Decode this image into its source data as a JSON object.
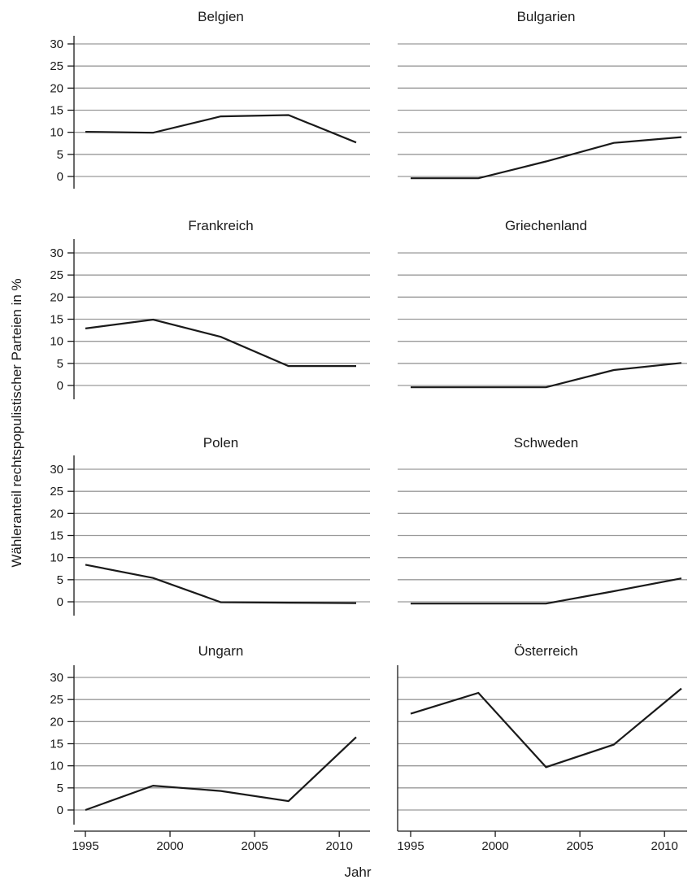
{
  "chart_data": {
    "type": "line",
    "layout": "small-multiples",
    "ylabel": "Wähleranteil rechtspopulistischer Parteien in %",
    "xlabel": "Jahr",
    "x_ticks": [
      "1995",
      "2000",
      "2005",
      "2010"
    ],
    "y_ticks": [
      "0",
      "5",
      "10",
      "15",
      "20",
      "25",
      "30"
    ],
    "xlim": [
      1995,
      2011
    ],
    "ylim": [
      0,
      30
    ],
    "grid": "horizontal",
    "x": [
      1995,
      1999,
      2003,
      2007,
      2011
    ],
    "panels": [
      {
        "title": "Belgien",
        "values": [
          10.1,
          9.9,
          13.6,
          13.9,
          7.7
        ]
      },
      {
        "title": "Bulgarien",
        "values": [
          -0.4,
          -0.4,
          3.4,
          7.6,
          8.9
        ]
      },
      {
        "title": "Frankreich",
        "values": [
          12.9,
          14.9,
          11.0,
          4.4,
          4.4
        ]
      },
      {
        "title": "Griechenland",
        "values": [
          -0.4,
          -0.4,
          -0.4,
          3.5,
          5.1
        ]
      },
      {
        "title": "Polen",
        "values": [
          8.4,
          5.4,
          -0.1,
          -0.2,
          -0.3
        ]
      },
      {
        "title": "Schweden",
        "values": [
          -0.4,
          -0.4,
          -0.4,
          2.4,
          5.3
        ]
      },
      {
        "title": "Ungarn",
        "values": [
          0.0,
          5.5,
          4.3,
          2.0,
          16.5
        ]
      },
      {
        "title": "Österreich",
        "values": [
          21.8,
          26.5,
          9.7,
          14.8,
          27.5
        ]
      }
    ]
  }
}
